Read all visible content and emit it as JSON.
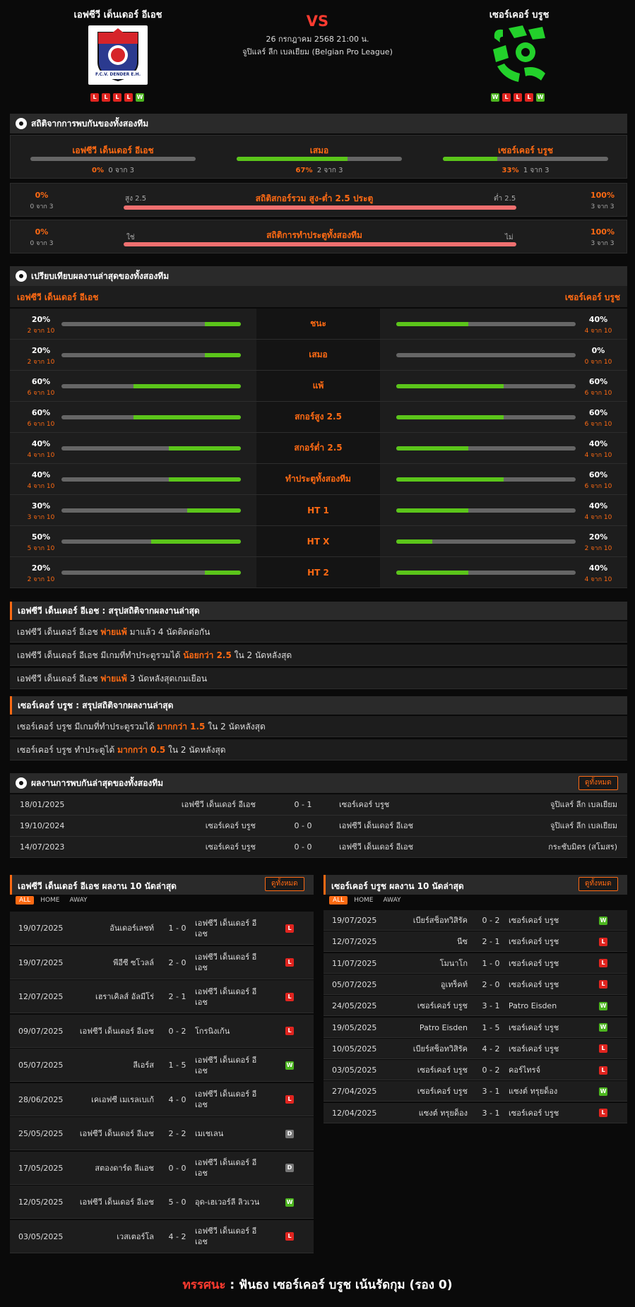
{
  "match": {
    "home_name": "เอฟซีวี เด็นเดอร์ อีเอช",
    "away_name": "เซอร์เคอร์ บรูช",
    "vs": "VS",
    "datetime": "26 กรกฎาคม 2568 21:00 น.",
    "league": "จูปิแลร์ ลีก เบลเยียม (Belgian Pro League)",
    "home_logo_text": "F.C.V. DENDER E.H.",
    "home_form": [
      "L",
      "L",
      "L",
      "L",
      "W"
    ],
    "away_form": [
      "W",
      "L",
      "L",
      "L",
      "W"
    ]
  },
  "h2h_stats": {
    "title": "สถิติจากการพบกันของทั้งสองทีม",
    "home": {
      "label": "เอฟซีวี เด็นเดอร์ อีเอช",
      "pct": "0%",
      "sub": "0 จาก 3",
      "fill": 0
    },
    "draw": {
      "label": "เสมอ",
      "pct": "67%",
      "sub": "2 จาก 3",
      "fill": 0.67
    },
    "away": {
      "label": "เซอร์เคอร์ บรูช",
      "pct": "33%",
      "sub": "1 จาก 3",
      "fill": 0.33
    },
    "ou": {
      "left_pct": "0%",
      "left_sub": "0 จาก 3",
      "left_label": "สูง 2.5",
      "title": "สถิติสกอร์รวม สูง-ต่ำ 2.5 ประตู",
      "right_label": "ต่ำ 2.5",
      "right_pct": "100%",
      "right_sub": "3 จาก 3"
    },
    "btts": {
      "left_pct": "0%",
      "left_sub": "0 จาก 3",
      "left_label": "ใช่",
      "title": "สถิติการทำประตูทั้งสองทีม",
      "right_label": "ไม่",
      "right_pct": "100%",
      "right_sub": "3 จาก 3"
    }
  },
  "compare": {
    "title": "เปรียบเทียบผลงานล่าสุดของทั้งสองทีม",
    "home_name": "เอฟซีวี เด็นเดอร์ อีเอช",
    "away_name": "เซอร์เคอร์ บรูช",
    "rows": [
      {
        "label": "ชนะ",
        "hp": "20%",
        "hs": "2 จาก 10",
        "hf": 0.2,
        "ap": "40%",
        "as": "4 จาก 10",
        "af": 0.4
      },
      {
        "label": "เสมอ",
        "hp": "20%",
        "hs": "2 จาก 10",
        "hf": 0.2,
        "ap": "0%",
        "as": "0 จาก 10",
        "af": 0
      },
      {
        "label": "แพ้",
        "hp": "60%",
        "hs": "6 จาก 10",
        "hf": 0.6,
        "ap": "60%",
        "as": "6 จาก 10",
        "af": 0.6
      },
      {
        "label": "สกอร์สูง 2.5",
        "hp": "60%",
        "hs": "6 จาก 10",
        "hf": 0.6,
        "ap": "60%",
        "as": "6 จาก 10",
        "af": 0.6
      },
      {
        "label": "สกอร์ต่ำ 2.5",
        "hp": "40%",
        "hs": "4 จาก 10",
        "hf": 0.4,
        "ap": "40%",
        "as": "4 จาก 10",
        "af": 0.4
      },
      {
        "label": "ทำประตูทั้งสองทีม",
        "hp": "40%",
        "hs": "4 จาก 10",
        "hf": 0.4,
        "ap": "60%",
        "as": "6 จาก 10",
        "af": 0.6
      },
      {
        "label": "HT 1",
        "hp": "30%",
        "hs": "3 จาก 10",
        "hf": 0.3,
        "ap": "40%",
        "as": "4 จาก 10",
        "af": 0.4
      },
      {
        "label": "HT X",
        "hp": "50%",
        "hs": "5 จาก 10",
        "hf": 0.5,
        "ap": "20%",
        "as": "2 จาก 10",
        "af": 0.2
      },
      {
        "label": "HT 2",
        "hp": "20%",
        "hs": "2 จาก 10",
        "hf": 0.2,
        "ap": "40%",
        "as": "4 จาก 10",
        "af": 0.4
      }
    ]
  },
  "summary_home": {
    "title": "เอฟซีวี เด็นเดอร์ อีเอช : สรุปสถิติจากผลงานล่าสุด",
    "rows": [
      [
        "เอฟซีวี เด็นเดอร์ อีเอช ",
        "พ่ายแพ้",
        " มาแล้ว 4 นัดติดต่อกัน"
      ],
      [
        "เอฟซีวี เด็นเดอร์ อีเอช  มีเกมที่ทำประตูรวมได้ ",
        "น้อยกว่า  2.5",
        "  ใน 2 นัดหลังสุด"
      ],
      [
        "เอฟซีวี เด็นเดอร์ อีเอช ",
        "พ่ายแพ้",
        "  3  นัดหลังสุดเกมเยือน"
      ]
    ]
  },
  "summary_away": {
    "title": "เซอร์เคอร์ บรูช : สรุปสถิติจากผลงานล่าสุด",
    "rows": [
      [
        "เซอร์เคอร์ บรูช  มีเกมที่ทำประตูรวมได้ ",
        "มากกว่า  1.5",
        "  ใน 2 นัดหลังสุด"
      ],
      [
        "เซอร์เคอร์ บรูช  ทำประตูได้ ",
        "มากกว่า  0.5",
        "  ใน 2 นัดหลังสุด"
      ]
    ]
  },
  "h2h_list": {
    "title": "ผลงานการพบกันล่าสุดของทั้งสองทีม",
    "view_all": "ดูทั้งหมด",
    "rows": [
      {
        "date": "18/01/2025",
        "home": "เอฟซีวี เด็นเดอร์ อีเอช",
        "score": "0 - 1",
        "away": "เซอร์เคอร์ บรูช",
        "league": "จูปิแลร์ ลีก เบลเยียม"
      },
      {
        "date": "19/10/2024",
        "home": "เซอร์เคอร์ บรูช",
        "score": "0 - 0",
        "away": "เอฟซีวี เด็นเดอร์ อีเอช",
        "league": "จูปิแลร์ ลีก เบลเยียม"
      },
      {
        "date": "14/07/2023",
        "home": "เซอร์เคอร์ บรูช",
        "score": "0 - 0",
        "away": "เอฟซีวี เด็นเดอร์ อีเอช",
        "league": "กระชับมิตร (สโมสร)"
      }
    ]
  },
  "last10_home": {
    "title": "เอฟซีวี เด็นเดอร์ อีเอช ผลงาน 10 นัดล่าสุด",
    "view_all": "ดูทั้งหมด",
    "tabs": [
      "ALL",
      "HOME",
      "AWAY"
    ],
    "rows": [
      {
        "date": "19/07/2025",
        "home": "อันเดอร์เลชท์",
        "score": "1 - 0",
        "away": "เอฟซีวี เด็นเดอร์ อีเอช",
        "res": "L"
      },
      {
        "date": "19/07/2025",
        "home": "พีอีซี ซโวลล์",
        "score": "2 - 0",
        "away": "เอฟซีวี เด็นเดอร์ อีเอช",
        "res": "L"
      },
      {
        "date": "12/07/2025",
        "home": "เฮราเคิลส์ อัลมีโร่",
        "score": "2 - 1",
        "away": "เอฟซีวี เด็นเดอร์ อีเอช",
        "res": "L"
      },
      {
        "date": "09/07/2025",
        "home": "เอฟซีวี เด็นเดอร์ อีเอช",
        "score": "0 - 2",
        "away": "โกรนิงเก้น",
        "res": "L"
      },
      {
        "date": "05/07/2025",
        "home": "ลีเอร์ส",
        "score": "1 - 5",
        "away": "เอฟซีวี เด็นเดอร์ อีเอช",
        "res": "W"
      },
      {
        "date": "28/06/2025",
        "home": "เคเอฟซี เมเรลเบเก้",
        "score": "4 - 0",
        "away": "เอฟซีวี เด็นเดอร์ อีเอช",
        "res": "L"
      },
      {
        "date": "25/05/2025",
        "home": "เอฟซีวี เด็นเดอร์ อีเอช",
        "score": "2 - 2",
        "away": "เมเชเลน",
        "res": "D"
      },
      {
        "date": "17/05/2025",
        "home": "สตองดาร์ด ลีแอช",
        "score": "0 - 0",
        "away": "เอฟซีวี เด็นเดอร์ อีเอช",
        "res": "D"
      },
      {
        "date": "12/05/2025",
        "home": "เอฟซีวี เด็นเดอร์ อีเอช",
        "score": "5 - 0",
        "away": "อุด-เฮเวอร์ลี ลิวเวน",
        "res": "W"
      },
      {
        "date": "03/05/2025",
        "home": "เวสเตอร์โล",
        "score": "4 - 2",
        "away": "เอฟซีวี เด็นเดอร์ อีเอช",
        "res": "L"
      }
    ]
  },
  "last10_away": {
    "title": "เซอร์เคอร์ บรูช ผลงาน 10 นัดล่าสุด",
    "view_all": "ดูทั้งหมด",
    "tabs": [
      "ALL",
      "HOME",
      "AWAY"
    ],
    "rows": [
      {
        "date": "19/07/2025",
        "home": "เบียร์สช็อทวิสิรัค",
        "score": "0 - 2",
        "away": "เซอร์เคอร์ บรูช",
        "res": "W"
      },
      {
        "date": "12/07/2025",
        "home": "นีซ",
        "score": "2 - 1",
        "away": "เซอร์เคอร์ บรูช",
        "res": "L"
      },
      {
        "date": "11/07/2025",
        "home": "โมนาโก",
        "score": "1 - 0",
        "away": "เซอร์เคอร์ บรูช",
        "res": "L"
      },
      {
        "date": "05/07/2025",
        "home": "อูเทร็คท์",
        "score": "2 - 0",
        "away": "เซอร์เคอร์ บรูช",
        "res": "L"
      },
      {
        "date": "24/05/2025",
        "home": "เซอร์เคอร์ บรูช",
        "score": "3 - 1",
        "away": "Patro Eisden",
        "res": "W"
      },
      {
        "date": "19/05/2025",
        "home": "Patro Eisden",
        "score": "1 - 5",
        "away": "เซอร์เคอร์ บรูช",
        "res": "W"
      },
      {
        "date": "10/05/2025",
        "home": "เบียร์สช็อทวิสิรัค",
        "score": "4 - 2",
        "away": "เซอร์เคอร์ บรูช",
        "res": "L"
      },
      {
        "date": "03/05/2025",
        "home": "เซอร์เคอร์ บรูช",
        "score": "0 - 2",
        "away": "คอร์ไทรจ์",
        "res": "L"
      },
      {
        "date": "27/04/2025",
        "home": "เซอร์เคอร์ บรูช",
        "score": "3 - 1",
        "away": "แซงต์ ทรุยด็อง",
        "res": "W"
      },
      {
        "date": "12/04/2025",
        "home": "แซงต์ ทรุยด็อง",
        "score": "3 - 1",
        "away": "เซอร์เคอร์ บรูช",
        "res": "L"
      }
    ]
  },
  "verdict": {
    "label": "ทรรศนะ",
    "sep": " :  ",
    "text": "ฟันธง เซอร์เคอร์ บรูช เน้นรัดกุม (รอง 0)"
  },
  "colors": {
    "accent": "#ff6a13",
    "win": "#4cb51f",
    "loss": "#e0241f",
    "draw": "#777777",
    "vs": "#ff3b30",
    "green_bar": "#5bc51a",
    "red_bar": "#f07070"
  }
}
